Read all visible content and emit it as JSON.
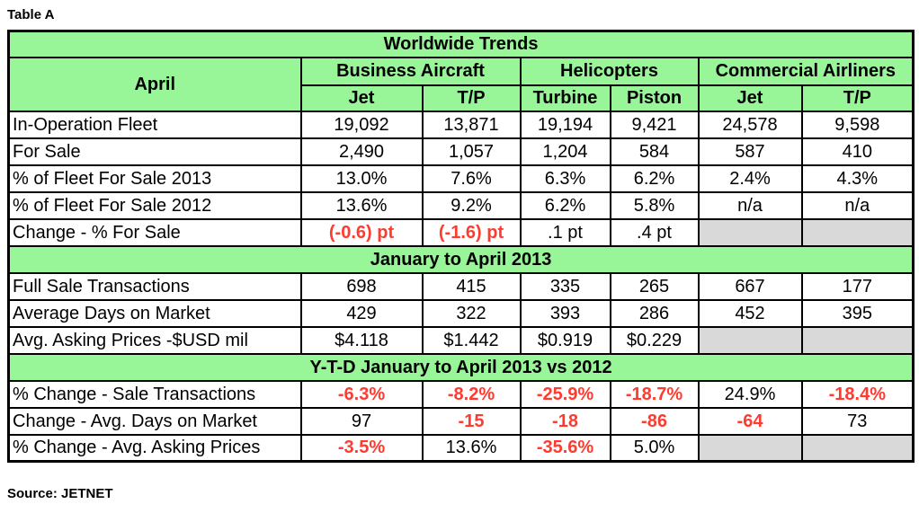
{
  "caption": "Table A",
  "source": "Source: JETNET",
  "title": "Worldwide Trends",
  "header": {
    "row_label": "April",
    "groups": [
      "Business Aircraft",
      "Helicopters",
      "Commercial Airliners"
    ],
    "subcolumns": [
      "Jet",
      "T/P",
      "Turbine",
      "Piston",
      "Jet",
      "T/P"
    ]
  },
  "sections": [
    {
      "title": null,
      "rows": [
        {
          "label": "In-Operation Fleet",
          "values": [
            "19,092",
            "13,871",
            "19,194",
            "9,421",
            "24,578",
            "9,598"
          ],
          "red": []
        },
        {
          "label": "For Sale",
          "values": [
            "2,490",
            "1,057",
            "1,204",
            "584",
            "587",
            "410"
          ],
          "red": []
        },
        {
          "label": "% of Fleet For Sale 2013",
          "values": [
            "13.0%",
            "7.6%",
            "6.3%",
            "6.2%",
            "2.4%",
            "4.3%"
          ],
          "red": []
        },
        {
          "label": "% of Fleet For Sale 2012",
          "values": [
            "13.6%",
            "9.2%",
            "6.2%",
            "5.8%",
            "n/a",
            "n/a"
          ],
          "red": []
        },
        {
          "label": "Change - % For Sale",
          "values": [
            "(-0.6) pt",
            "(-1.6) pt",
            ".1 pt",
            ".4 pt",
            null,
            null
          ],
          "red": [
            0,
            1
          ]
        }
      ]
    },
    {
      "title": "January to April 2013",
      "rows": [
        {
          "label": "Full Sale Transactions",
          "values": [
            "698",
            "415",
            "335",
            "265",
            "667",
            "177"
          ],
          "red": []
        },
        {
          "label": "Average Days on Market",
          "values": [
            "429",
            "322",
            "393",
            "286",
            "452",
            "395"
          ],
          "red": []
        },
        {
          "label": "Avg. Asking Prices -$USD mil",
          "values": [
            "$4.118",
            "$1.442",
            "$0.919",
            "$0.229",
            null,
            null
          ],
          "red": []
        }
      ]
    },
    {
      "title": "Y-T-D January to April 2013 vs 2012",
      "rows": [
        {
          "label": "% Change  - Sale Transactions",
          "values": [
            "-6.3%",
            "-8.2%",
            "-25.9%",
            "-18.7%",
            "24.9%",
            "-18.4%"
          ],
          "red": [
            0,
            1,
            2,
            3,
            5
          ]
        },
        {
          "label": "Change -  Avg. Days on Market",
          "values": [
            "97",
            "-15",
            "-18",
            "-86",
            "-64",
            "73"
          ],
          "red": [
            1,
            2,
            3,
            4
          ]
        },
        {
          "label": "% Change - Avg. Asking Prices",
          "values": [
            "-3.5%",
            "13.6%",
            "-35.6%",
            "5.0%",
            null,
            null
          ],
          "red": [
            0,
            2
          ]
        }
      ]
    }
  ]
}
